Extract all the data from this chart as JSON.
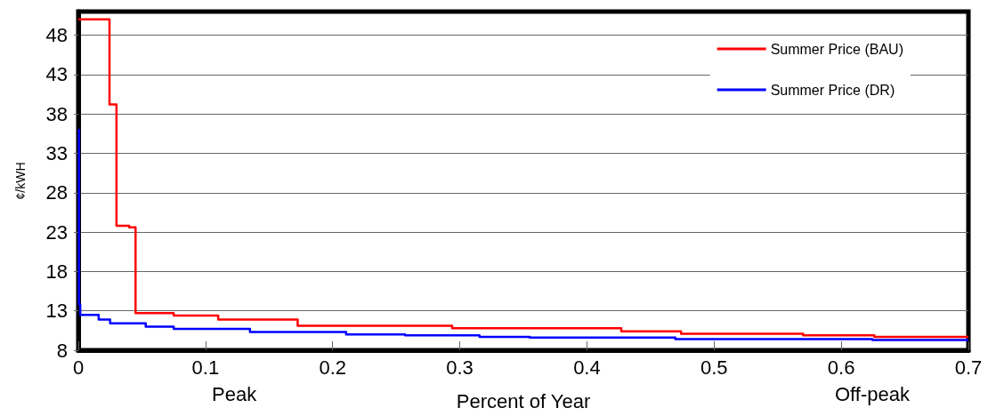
{
  "chart_data": {
    "type": "step",
    "xlabel": "Percent of Year",
    "ylabel": "¢/kWH",
    "annotations": [
      "Peak",
      "Off-peak"
    ],
    "xlim": [
      0,
      0.7
    ],
    "xticks": [
      0,
      0.1,
      0.2,
      0.3,
      0.4,
      0.5,
      0.6,
      0.7
    ],
    "ylim": [
      8,
      51
    ],
    "yticks": [
      8,
      13,
      18,
      23,
      28,
      33,
      38,
      43,
      48
    ],
    "grid": "y",
    "legend": "top right",
    "line_style": "solid",
    "marker": "none",
    "series": [
      {
        "name": "Summer Price (BAU)",
        "color": "#ff0000",
        "x": [
          0,
          0.0245,
          0.03,
          0.04,
          0.045,
          0.075,
          0.11,
          0.1725,
          0.294,
          0.427,
          0.474,
          0.57,
          0.626,
          0.7
        ],
        "values": [
          50,
          39.2,
          23.8,
          23.6,
          12.7,
          12.4,
          11.9,
          11.1,
          10.8,
          10.4,
          10.1,
          9.9,
          9.7,
          9.7
        ]
      },
      {
        "name": "Summer Price (DR)",
        "color": "#0000ff",
        "x": [
          0,
          0.0005,
          0.0015,
          0.016,
          0.025,
          0.053,
          0.075,
          0.135,
          0.2106,
          0.257,
          0.3155,
          0.355,
          0.4695,
          0.6245,
          0.7
        ],
        "values": [
          36,
          13.8,
          12.5,
          11.9,
          11.4,
          11.0,
          10.7,
          10.3,
          10.0,
          9.9,
          9.7,
          9.6,
          9.4,
          9.3,
          9.3
        ]
      }
    ]
  }
}
